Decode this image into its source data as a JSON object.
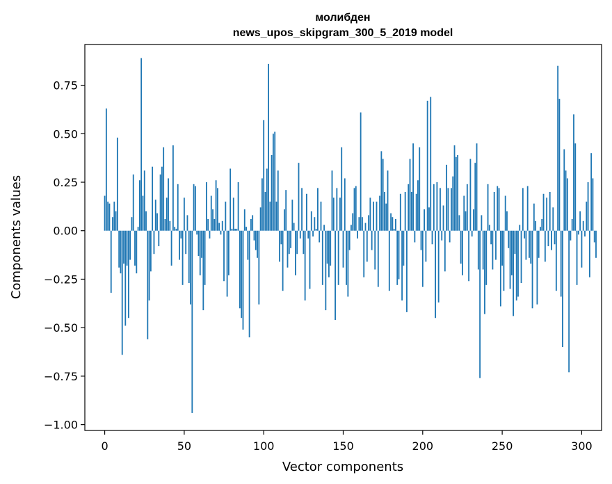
{
  "chart_data": {
    "type": "bar",
    "title": "молибден",
    "subtitle": "news_upos_skipgram_300_5_2019 model",
    "xlabel": "Vector components",
    "ylabel": "Components values",
    "xlim": [
      -12.5,
      312.5
    ],
    "ylim": [
      -1.03,
      0.96
    ],
    "xticks": [
      0,
      50,
      100,
      150,
      200,
      250,
      300
    ],
    "xtick_labels": [
      "0",
      "50",
      "100",
      "150",
      "200",
      "250",
      "300"
    ],
    "yticks": [
      -1.0,
      -0.75,
      -0.5,
      -0.25,
      0.0,
      0.25,
      0.5,
      0.75
    ],
    "ytick_labels": [
      "−1.00",
      "−0.75",
      "−0.50",
      "−0.25",
      "0.00",
      "0.25",
      "0.50",
      "0.75"
    ],
    "color": "#1f77b4",
    "values": [
      0.18,
      0.63,
      0.15,
      0.14,
      -0.32,
      0.07,
      0.15,
      0.1,
      0.48,
      -0.19,
      -0.22,
      -0.64,
      -0.17,
      -0.49,
      -0.18,
      -0.45,
      -0.15,
      0.07,
      0.29,
      -0.18,
      -0.22,
      0.02,
      0.26,
      0.89,
      0.18,
      0.31,
      0.1,
      -0.56,
      -0.36,
      -0.21,
      0.33,
      -0.12,
      0.16,
      0.09,
      -0.08,
      0.29,
      0.33,
      0.43,
      0.06,
      0.17,
      0.27,
      0.05,
      -0.18,
      0.44,
      0.02,
      0.01,
      0.24,
      -0.15,
      -0.04,
      -0.28,
      0.17,
      -0.12,
      0.08,
      -0.27,
      -0.38,
      -0.94,
      0.24,
      0.23,
      -0.02,
      -0.13,
      -0.23,
      -0.14,
      -0.41,
      -0.28,
      0.25,
      0.06,
      -0.04,
      0.18,
      0.11,
      0.06,
      0.26,
      0.22,
      0.04,
      -0.02,
      0.05,
      -0.26,
      0.15,
      -0.34,
      -0.23,
      0.32,
      0.01,
      0.17,
      0.01,
      0.01,
      0.25,
      -0.4,
      -0.45,
      -0.51,
      0.11,
      0.02,
      -0.15,
      -0.55,
      0.06,
      0.08,
      -0.05,
      -0.1,
      -0.14,
      -0.38,
      0.12,
      0.27,
      0.57,
      0.2,
      0.32,
      0.86,
      0.15,
      0.39,
      0.5,
      0.51,
      0.15,
      0.31,
      -0.16,
      -0.07,
      -0.31,
      0.11,
      0.21,
      -0.19,
      -0.12,
      -0.09,
      0.16,
      0.04,
      -0.23,
      -0.12,
      0.35,
      -0.04,
      0.22,
      -0.12,
      -0.36,
      0.19,
      -0.04,
      -0.3,
      0.1,
      -0.03,
      0.07,
      0.01,
      0.22,
      -0.06,
      0.15,
      -0.28,
      0.03,
      -0.41,
      -0.17,
      -0.24,
      -0.18,
      0.31,
      0.17,
      -0.46,
      0.22,
      -0.28,
      0.17,
      0.43,
      -0.19,
      0.27,
      -0.28,
      -0.34,
      -0.1,
      0.03,
      0.09,
      0.22,
      0.23,
      -0.04,
      0.07,
      0.61,
      0.07,
      -0.24,
      0.04,
      -0.16,
      0.08,
      0.17,
      -0.1,
      0.15,
      -0.2,
      0.15,
      -0.29,
      0.18,
      0.41,
      0.37,
      0.2,
      0.14,
      0.31,
      -0.31,
      0.09,
      0.07,
      0.01,
      0.06,
      -0.28,
      -0.25,
      0.19,
      -0.36,
      -0.18,
      0.2,
      -0.42,
      0.24,
      0.37,
      0.2,
      0.45,
      -0.06,
      0.19,
      0.26,
      0.43,
      -0.1,
      -0.29,
      0.11,
      -0.16,
      0.67,
      0.12,
      0.69,
      -0.07,
      0.24,
      -0.45,
      0.25,
      -0.37,
      0.22,
      -0.05,
      0.13,
      -0.21,
      0.34,
      0.22,
      -0.06,
      0.22,
      0.28,
      0.44,
      0.38,
      0.39,
      0.08,
      -0.17,
      -0.23,
      0.18,
      0.1,
      0.24,
      -0.26,
      0.37,
      -0.03,
      0.11,
      0.35,
      0.45,
      -0.2,
      -0.76,
      0.08,
      -0.2,
      -0.43,
      -0.28,
      0.24,
      0.03,
      -0.07,
      -0.2,
      0.2,
      -0.15,
      0.23,
      0.22,
      -0.39,
      -0.18,
      -0.31,
      0.18,
      0.1,
      -0.09,
      -0.3,
      -0.23,
      -0.44,
      -0.12,
      -0.36,
      -0.34,
      0.03,
      -0.27,
      0.22,
      -0.04,
      -0.15,
      0.23,
      -0.14,
      -0.17,
      -0.4,
      0.14,
      0.05,
      -0.38,
      -0.14,
      0.02,
      0.06,
      0.19,
      -0.16,
      0.17,
      -0.08,
      0.2,
      -0.1,
      0.12,
      -0.07,
      -0.31,
      0.85,
      0.68,
      -0.34,
      -0.6,
      0.42,
      0.31,
      0.27,
      -0.73,
      -0.05,
      0.06,
      0.6,
      0.45,
      -0.28,
      -0.02,
      0.1,
      -0.19,
      0.05,
      -0.03,
      0.15,
      0.25,
      -0.24,
      0.4,
      0.27,
      -0.06,
      -0.14
    ]
  }
}
